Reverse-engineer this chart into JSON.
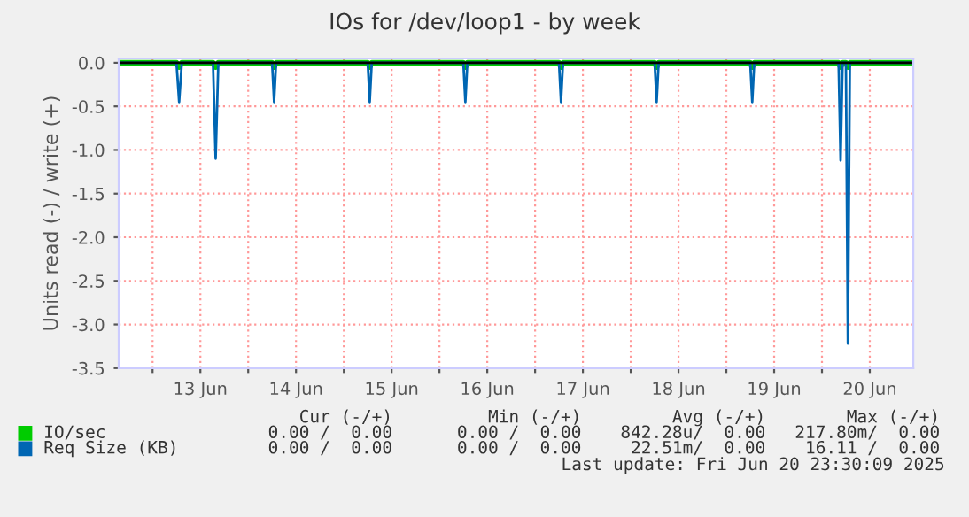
{
  "chart_data": {
    "type": "line",
    "title": "IOs for /dev/loop1 - by week",
    "ylabel": "Units read (-) / write (+)",
    "x": [
      "2025-06-12T15:30",
      "2025-06-13T06:00",
      "2025-06-13T06:40",
      "2025-06-13T07:20",
      "2025-06-13T15:10",
      "2025-06-13T15:50",
      "2025-06-13T16:30",
      "2025-06-14T06:00",
      "2025-06-14T06:30",
      "2025-06-14T07:00",
      "2025-06-15T06:00",
      "2025-06-15T06:30",
      "2025-06-15T07:00",
      "2025-06-16T06:00",
      "2025-06-16T06:30",
      "2025-06-16T07:00",
      "2025-06-17T06:00",
      "2025-06-17T06:30",
      "2025-06-17T07:00",
      "2025-06-18T06:00",
      "2025-06-18T06:30",
      "2025-06-18T07:00",
      "2025-06-19T06:00",
      "2025-06-19T06:30",
      "2025-06-19T07:00",
      "2025-06-20T04:10",
      "2025-06-20T04:40",
      "2025-06-20T05:10",
      "2025-06-20T06:00",
      "2025-06-20T06:30",
      "2025-06-20T07:00",
      "2025-06-20T22:55"
    ],
    "series": [
      {
        "name": "IO/sec",
        "color": "#00cc00",
        "values": [
          0,
          0,
          -0.05,
          0,
          0,
          -0.05,
          0,
          0,
          -0.05,
          0,
          0,
          -0.05,
          0,
          0,
          -0.05,
          0,
          0,
          -0.05,
          0,
          0,
          -0.05,
          0,
          0,
          -0.05,
          0,
          0,
          -0.05,
          0,
          0,
          -0.05,
          0,
          0
        ]
      },
      {
        "name": "Req Size (KB)",
        "color": "#0066b3",
        "values": [
          0,
          0,
          -0.45,
          0,
          0,
          -1.1,
          0,
          0,
          -0.45,
          0,
          0,
          -0.45,
          0,
          0,
          -0.45,
          0,
          0,
          -0.45,
          0,
          0,
          -0.45,
          0,
          0,
          -0.45,
          0,
          0,
          -1.12,
          0,
          0,
          -3.22,
          0,
          0
        ]
      }
    ],
    "xlim": [
      "2025-06-12T15:30",
      "2025-06-20T22:55"
    ],
    "xticks": [
      {
        "value": "2025-06-13T00:00",
        "label": null
      },
      {
        "value": "2025-06-13T12:00",
        "label": "13 Jun"
      },
      {
        "value": "2025-06-14T00:00",
        "label": null
      },
      {
        "value": "2025-06-14T12:00",
        "label": "14 Jun"
      },
      {
        "value": "2025-06-15T00:00",
        "label": null
      },
      {
        "value": "2025-06-15T12:00",
        "label": "15 Jun"
      },
      {
        "value": "2025-06-16T00:00",
        "label": null
      },
      {
        "value": "2025-06-16T12:00",
        "label": "16 Jun"
      },
      {
        "value": "2025-06-17T00:00",
        "label": null
      },
      {
        "value": "2025-06-17T12:00",
        "label": "17 Jun"
      },
      {
        "value": "2025-06-18T00:00",
        "label": null
      },
      {
        "value": "2025-06-18T12:00",
        "label": "18 Jun"
      },
      {
        "value": "2025-06-19T00:00",
        "label": null
      },
      {
        "value": "2025-06-19T12:00",
        "label": "19 Jun"
      },
      {
        "value": "2025-06-20T00:00",
        "label": null
      },
      {
        "value": "2025-06-20T12:00",
        "label": "20 Jun"
      }
    ],
    "ylim": [
      -3.5,
      0.05
    ],
    "yticks": [
      {
        "value": 0,
        "label": "0.0"
      },
      {
        "value": -0.5,
        "label": "-0.5"
      },
      {
        "value": -1,
        "label": "-1.0"
      },
      {
        "value": -1.5,
        "label": "-1.5"
      },
      {
        "value": -2,
        "label": "-2.0"
      },
      {
        "value": -2.5,
        "label": "-2.5"
      },
      {
        "value": -3,
        "label": "-3.0"
      },
      {
        "value": -3.5,
        "label": "-3.5"
      }
    ],
    "ref_lines": [
      {
        "axis": "y",
        "value": 0,
        "color": "#000000"
      }
    ],
    "grid": true,
    "legend": "bottom",
    "marker": "none",
    "line_style": "solid",
    "annotations": [
      "Cur (-/+)",
      "Min (-/+)",
      "Avg (-/+)",
      "Max (-/+)",
      "0.00 /  0.00",
      "0.00 /  0.00",
      "842.28u/  0.00",
      "217.80m/  0.00",
      "0.00 /  0.00",
      "0.00 /  0.00",
      "22.51m/  0.00",
      "16.11 /  0.00",
      "Last update: Fri Jun 20 23:30:09 2025"
    ]
  }
}
